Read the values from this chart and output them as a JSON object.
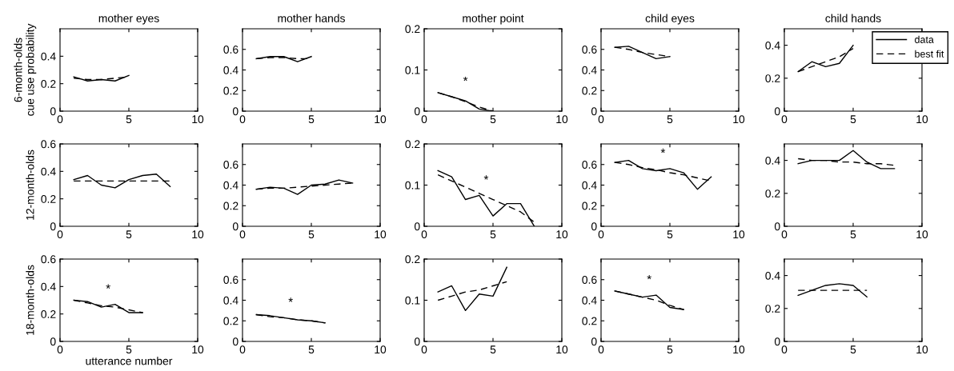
{
  "chart_data": [
    {
      "type": "line",
      "title": "mother eyes",
      "ylabel": "6-month-olds\ncue use probability",
      "x": [
        1,
        2,
        3,
        4,
        5
      ],
      "xlim": [
        0,
        10
      ],
      "xticks": [
        0,
        5,
        10
      ],
      "ylim": [
        0,
        0.6
      ],
      "yticks": [
        0,
        0.2,
        0.4
      ],
      "series": [
        {
          "color": "#000000",
          "line_style": "solid",
          "values": [
            0.25,
            0.22,
            0.23,
            0.22,
            0.26
          ]
        },
        {
          "color": "#000000",
          "line_style": "dashed",
          "values": [
            0.24,
            0.23,
            0.23,
            0.24,
            0.25
          ]
        }
      ]
    },
    {
      "type": "line",
      "title": "mother hands",
      "x": [
        1,
        2,
        3,
        4,
        5
      ],
      "xlim": [
        0,
        10
      ],
      "xticks": [
        0,
        5,
        10
      ],
      "ylim": [
        0,
        0.8
      ],
      "yticks": [
        0,
        0.2,
        0.4,
        0.6
      ],
      "series": [
        {
          "color": "#000000",
          "line_style": "solid",
          "values": [
            0.51,
            0.53,
            0.53,
            0.48,
            0.53
          ]
        },
        {
          "color": "#000000",
          "line_style": "dashed",
          "values": [
            0.51,
            0.52,
            0.52,
            0.51,
            0.51
          ]
        }
      ]
    },
    {
      "type": "line",
      "title": "mother point",
      "x": [
        1,
        2,
        3,
        4,
        5
      ],
      "xlim": [
        0,
        10
      ],
      "xticks": [
        0,
        5,
        10
      ],
      "ylim": [
        0,
        0.2
      ],
      "yticks": [
        0,
        0.1,
        0.2
      ],
      "annotations": [
        "*"
      ],
      "series": [
        {
          "color": "#000000",
          "line_style": "solid",
          "values": [
            0.045,
            0.035,
            0.025,
            0.005,
            0.0
          ]
        },
        {
          "color": "#000000",
          "line_style": "dashed",
          "values": [
            0.045,
            0.035,
            0.023,
            0.01,
            0.0
          ]
        }
      ]
    },
    {
      "type": "line",
      "title": "child eyes",
      "x": [
        1,
        2,
        3,
        4,
        5
      ],
      "xlim": [
        0,
        10
      ],
      "xticks": [
        0,
        5,
        10
      ],
      "ylim": [
        0,
        0.8
      ],
      "yticks": [
        0,
        0.2,
        0.4,
        0.6
      ],
      "series": [
        {
          "color": "#000000",
          "line_style": "solid",
          "values": [
            0.62,
            0.63,
            0.57,
            0.51,
            0.53
          ]
        },
        {
          "color": "#000000",
          "line_style": "dashed",
          "values": [
            0.62,
            0.6,
            0.57,
            0.55,
            0.53
          ]
        }
      ]
    },
    {
      "type": "line",
      "title": "child hands",
      "x": [
        1,
        2,
        3,
        4,
        5
      ],
      "xlim": [
        0,
        10
      ],
      "xticks": [
        0,
        5,
        10
      ],
      "ylim": [
        0,
        0.5
      ],
      "yticks": [
        0,
        0.2,
        0.4
      ],
      "legend": "top right",
      "series": [
        {
          "name": "data",
          "color": "#000000",
          "line_style": "solid",
          "values": [
            0.24,
            0.3,
            0.27,
            0.29,
            0.4
          ]
        },
        {
          "name": "best fit",
          "color": "#000000",
          "line_style": "dashed",
          "values": [
            0.24,
            0.27,
            0.3,
            0.33,
            0.38
          ]
        }
      ]
    },
    {
      "type": "line",
      "ylabel": "12-month-olds",
      "x": [
        1,
        2,
        3,
        4,
        5,
        6,
        7,
        8
      ],
      "xlim": [
        0,
        10
      ],
      "xticks": [
        0,
        5,
        10
      ],
      "ylim": [
        0,
        0.6
      ],
      "yticks": [
        0,
        0.2,
        0.4,
        0.6
      ],
      "series": [
        {
          "color": "#000000",
          "line_style": "solid",
          "values": [
            0.34,
            0.37,
            0.3,
            0.28,
            0.34,
            0.37,
            0.38,
            0.29
          ]
        },
        {
          "color": "#000000",
          "line_style": "dashed",
          "values": [
            0.33,
            0.33,
            0.33,
            0.33,
            0.33,
            0.33,
            0.33,
            0.33
          ]
        }
      ]
    },
    {
      "type": "line",
      "x": [
        1,
        2,
        3,
        4,
        5,
        6,
        7,
        8
      ],
      "xlim": [
        0,
        10
      ],
      "xticks": [
        0,
        5,
        10
      ],
      "ylim": [
        0,
        0.8
      ],
      "yticks": [
        0,
        0.2,
        0.4,
        0.6
      ],
      "series": [
        {
          "color": "#000000",
          "line_style": "solid",
          "values": [
            0.36,
            0.38,
            0.37,
            0.31,
            0.4,
            0.41,
            0.45,
            0.42
          ]
        },
        {
          "color": "#000000",
          "line_style": "dashed",
          "values": [
            0.36,
            0.37,
            0.37,
            0.38,
            0.39,
            0.4,
            0.41,
            0.42
          ]
        }
      ]
    },
    {
      "type": "line",
      "x": [
        1,
        2,
        3,
        4,
        5,
        6,
        7,
        8
      ],
      "xlim": [
        0,
        10
      ],
      "xticks": [
        0,
        5,
        10
      ],
      "ylim": [
        0,
        0.2
      ],
      "yticks": [
        0,
        0.1,
        0.2
      ],
      "annotations": [
        "*"
      ],
      "series": [
        {
          "color": "#000000",
          "line_style": "solid",
          "values": [
            0.135,
            0.12,
            0.065,
            0.075,
            0.025,
            0.055,
            0.055,
            0.0
          ]
        },
        {
          "color": "#000000",
          "line_style": "dashed",
          "values": [
            0.125,
            0.11,
            0.095,
            0.08,
            0.065,
            0.05,
            0.035,
            0.01
          ]
        }
      ]
    },
    {
      "type": "line",
      "x": [
        1,
        2,
        3,
        4,
        5,
        6,
        7,
        8
      ],
      "xlim": [
        0,
        10
      ],
      "xticks": [
        0,
        5,
        10
      ],
      "ylim": [
        0,
        0.8
      ],
      "yticks": [
        0,
        0.2,
        0.4,
        0.6
      ],
      "annotations": [
        "*"
      ],
      "series": [
        {
          "color": "#000000",
          "line_style": "solid",
          "values": [
            0.62,
            0.64,
            0.56,
            0.54,
            0.56,
            0.52,
            0.36,
            0.48
          ]
        },
        {
          "color": "#000000",
          "line_style": "dashed",
          "values": [
            0.62,
            0.6,
            0.57,
            0.55,
            0.52,
            0.5,
            0.47,
            0.44
          ]
        }
      ]
    },
    {
      "type": "line",
      "x": [
        1,
        2,
        3,
        4,
        5,
        6,
        7,
        8
      ],
      "xlim": [
        0,
        10
      ],
      "xticks": [
        0,
        5,
        10
      ],
      "ylim": [
        0,
        0.5
      ],
      "yticks": [
        0,
        0.2,
        0.4
      ],
      "series": [
        {
          "color": "#000000",
          "line_style": "solid",
          "values": [
            0.38,
            0.4,
            0.4,
            0.4,
            0.46,
            0.39,
            0.35,
            0.35
          ]
        },
        {
          "color": "#000000",
          "line_style": "dashed",
          "values": [
            0.41,
            0.4,
            0.4,
            0.39,
            0.39,
            0.38,
            0.38,
            0.37
          ]
        }
      ]
    },
    {
      "type": "line",
      "ylabel": "18-month-olds",
      "xlabel": "utterance number",
      "x": [
        1,
        2,
        3,
        4,
        5,
        6
      ],
      "xlim": [
        0,
        10
      ],
      "xticks": [
        0,
        5,
        10
      ],
      "ylim": [
        0,
        0.6
      ],
      "yticks": [
        0,
        0.2,
        0.4,
        0.6
      ],
      "annotations": [
        "*"
      ],
      "series": [
        {
          "color": "#000000",
          "line_style": "solid",
          "values": [
            0.3,
            0.29,
            0.25,
            0.27,
            0.21,
            0.21
          ]
        },
        {
          "color": "#000000",
          "line_style": "dashed",
          "values": [
            0.3,
            0.28,
            0.26,
            0.25,
            0.23,
            0.21
          ]
        }
      ]
    },
    {
      "type": "line",
      "x": [
        1,
        2,
        3,
        4,
        5,
        6
      ],
      "xlim": [
        0,
        10
      ],
      "xticks": [
        0,
        5,
        10
      ],
      "ylim": [
        0,
        0.8
      ],
      "yticks": [
        0,
        0.2,
        0.4,
        0.6
      ],
      "annotations": [
        "*"
      ],
      "series": [
        {
          "color": "#000000",
          "line_style": "solid",
          "values": [
            0.26,
            0.25,
            0.23,
            0.21,
            0.2,
            0.18
          ]
        },
        {
          "color": "#000000",
          "line_style": "dashed",
          "values": [
            0.26,
            0.24,
            0.23,
            0.21,
            0.2,
            0.18
          ]
        }
      ]
    },
    {
      "type": "line",
      "x": [
        1,
        2,
        3,
        4,
        5,
        6
      ],
      "xlim": [
        0,
        10
      ],
      "xticks": [
        0,
        5,
        10
      ],
      "ylim": [
        0,
        0.2
      ],
      "yticks": [
        0,
        0.1,
        0.2
      ],
      "series": [
        {
          "color": "#000000",
          "line_style": "solid",
          "values": [
            0.12,
            0.135,
            0.075,
            0.115,
            0.11,
            0.18
          ]
        },
        {
          "color": "#000000",
          "line_style": "dashed",
          "values": [
            0.1,
            0.11,
            0.12,
            0.125,
            0.135,
            0.145
          ]
        }
      ]
    },
    {
      "type": "line",
      "x": [
        1,
        2,
        3,
        4,
        5,
        6
      ],
      "xlim": [
        0,
        10
      ],
      "xticks": [
        0,
        5,
        10
      ],
      "ylim": [
        0,
        0.8
      ],
      "yticks": [
        0,
        0.2,
        0.4,
        0.6
      ],
      "annotations": [
        "*"
      ],
      "series": [
        {
          "color": "#000000",
          "line_style": "solid",
          "values": [
            0.49,
            0.46,
            0.43,
            0.45,
            0.33,
            0.31
          ]
        },
        {
          "color": "#000000",
          "line_style": "dashed",
          "values": [
            0.49,
            0.46,
            0.43,
            0.4,
            0.35,
            0.31
          ]
        }
      ]
    },
    {
      "type": "line",
      "x": [
        1,
        2,
        3,
        4,
        5,
        6
      ],
      "xlim": [
        0,
        10
      ],
      "xticks": [
        0,
        5,
        10
      ],
      "ylim": [
        0,
        0.5
      ],
      "yticks": [
        0,
        0.2,
        0.4
      ],
      "series": [
        {
          "color": "#000000",
          "line_style": "solid",
          "values": [
            0.28,
            0.31,
            0.34,
            0.35,
            0.34,
            0.27
          ]
        },
        {
          "color": "#000000",
          "line_style": "dashed",
          "values": [
            0.31,
            0.31,
            0.31,
            0.31,
            0.31,
            0.31
          ]
        }
      ]
    }
  ]
}
